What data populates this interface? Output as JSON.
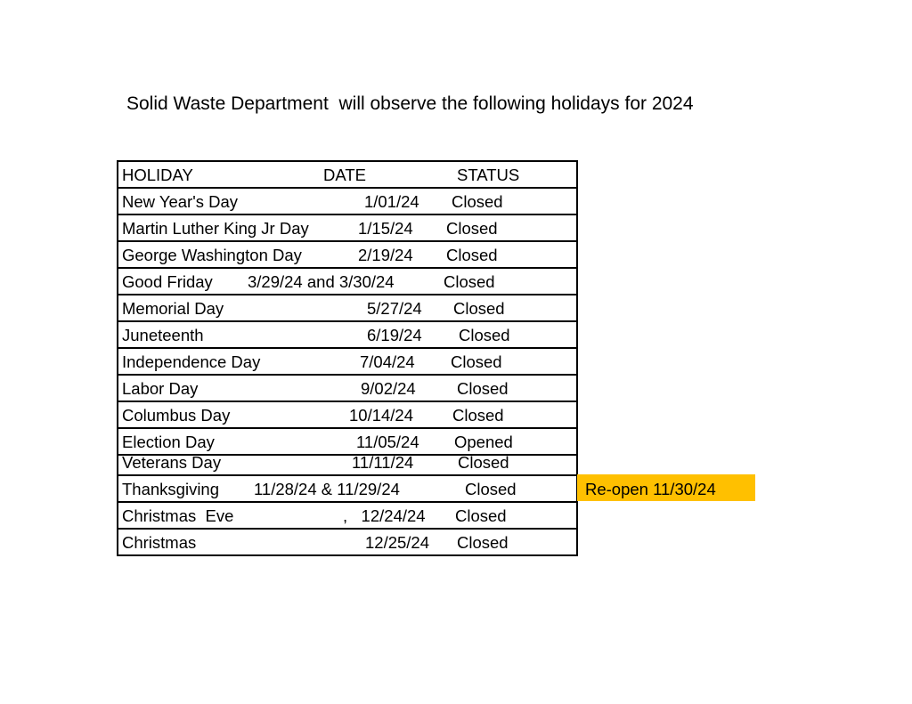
{
  "title": "Solid Waste Department  will observe the following holidays for 2024",
  "table": {
    "headers": {
      "holiday": "HOLIDAY",
      "date": "DATE",
      "status": "STATUS"
    },
    "rows": [
      {
        "holiday": "New Year's Day",
        "date": "1/01/24",
        "status": "Closed"
      },
      {
        "holiday": "Martin Luther King Jr Day",
        "date": "1/15/24",
        "status": "Closed"
      },
      {
        "holiday": "George Washington Day",
        "date": "2/19/24",
        "status": "Closed"
      },
      {
        "holiday": "Good Friday",
        "date": "3/29/24 and 3/30/24",
        "status": "Closed"
      },
      {
        "holiday": "Memorial Day",
        "date": "5/27/24",
        "status": "Closed"
      },
      {
        "holiday": "Juneteenth",
        "date": "6/19/24",
        "status": "Closed"
      },
      {
        "holiday": "Independence Day",
        "date": "7/04/24",
        "status": "Closed"
      },
      {
        "holiday": "Labor Day",
        "date": "9/02/24",
        "status": "Closed"
      },
      {
        "holiday": "Columbus Day",
        "date": "10/14/24",
        "status": "Closed"
      },
      {
        "holiday": "Election Day",
        "date": "11/05/24",
        "status": "Opened"
      },
      {
        "holiday": "Veterans Day",
        "date": "11/11/24",
        "status": "Closed"
      },
      {
        "holiday": "Thanksgiving",
        "date": "11/28/24 & 11/29/24",
        "status": "Closed"
      },
      {
        "holiday": "Christmas  Eve",
        "date": ",   12/24/24",
        "status": "Closed"
      },
      {
        "holiday": "Christmas",
        "date": "12/25/24",
        "status": "Closed"
      }
    ]
  },
  "note": {
    "text": "Re-open 11/30/24",
    "color": "#FFC000"
  }
}
